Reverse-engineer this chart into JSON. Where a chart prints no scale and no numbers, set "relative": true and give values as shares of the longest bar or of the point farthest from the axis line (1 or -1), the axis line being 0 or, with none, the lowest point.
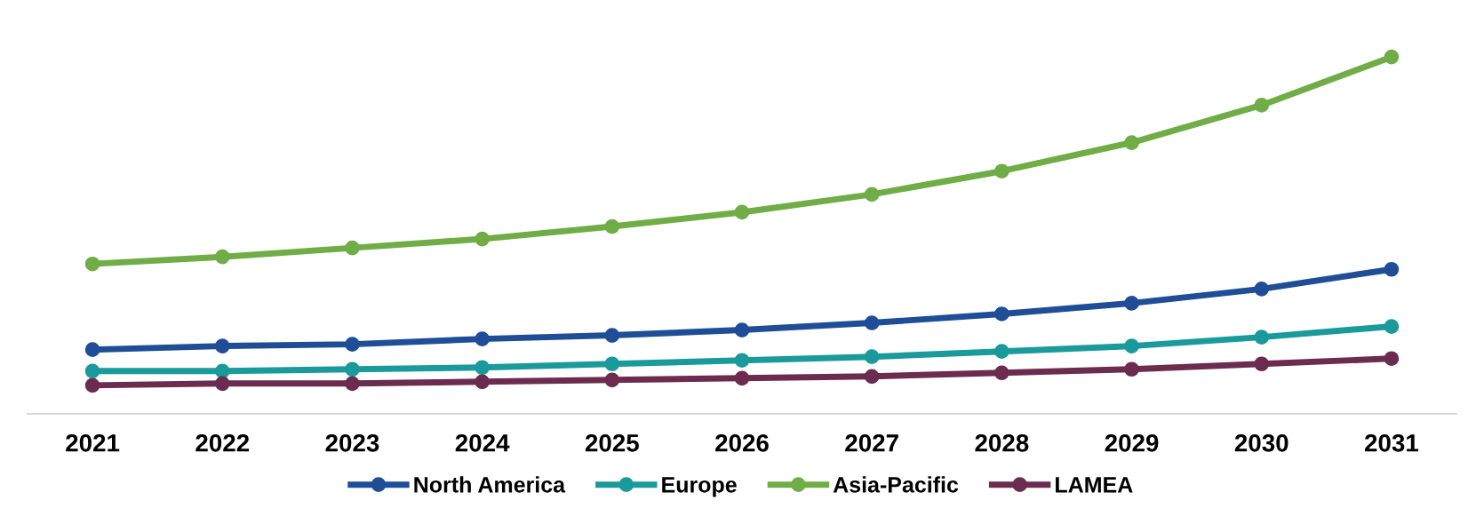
{
  "chart_data": {
    "type": "line",
    "relative": true,
    "categories": [
      "2021",
      "2022",
      "2023",
      "2024",
      "2025",
      "2026",
      "2027",
      "2028",
      "2029",
      "2030",
      "2031"
    ],
    "series": [
      {
        "name": "North America",
        "color": "#1f4e96",
        "values": [
          0.18,
          0.19,
          0.195,
          0.21,
          0.22,
          0.235,
          0.255,
          0.28,
          0.31,
          0.35,
          0.405
        ]
      },
      {
        "name": "Europe",
        "color": "#1a9a9a",
        "values": [
          0.12,
          0.12,
          0.125,
          0.13,
          0.14,
          0.15,
          0.16,
          0.175,
          0.19,
          0.215,
          0.245
        ]
      },
      {
        "name": "Asia-Pacific",
        "color": "#70ad47",
        "values": [
          0.42,
          0.44,
          0.465,
          0.49,
          0.525,
          0.565,
          0.615,
          0.68,
          0.76,
          0.865,
          1
        ]
      },
      {
        "name": "LAMEA",
        "color": "#6b2c4f",
        "values": [
          0.08,
          0.085,
          0.085,
          0.09,
          0.095,
          0.1,
          0.105,
          0.115,
          0.125,
          0.14,
          0.155
        ]
      }
    ],
    "marker": "circle",
    "line_style": "solid",
    "grid": false,
    "legend": "bottom"
  }
}
